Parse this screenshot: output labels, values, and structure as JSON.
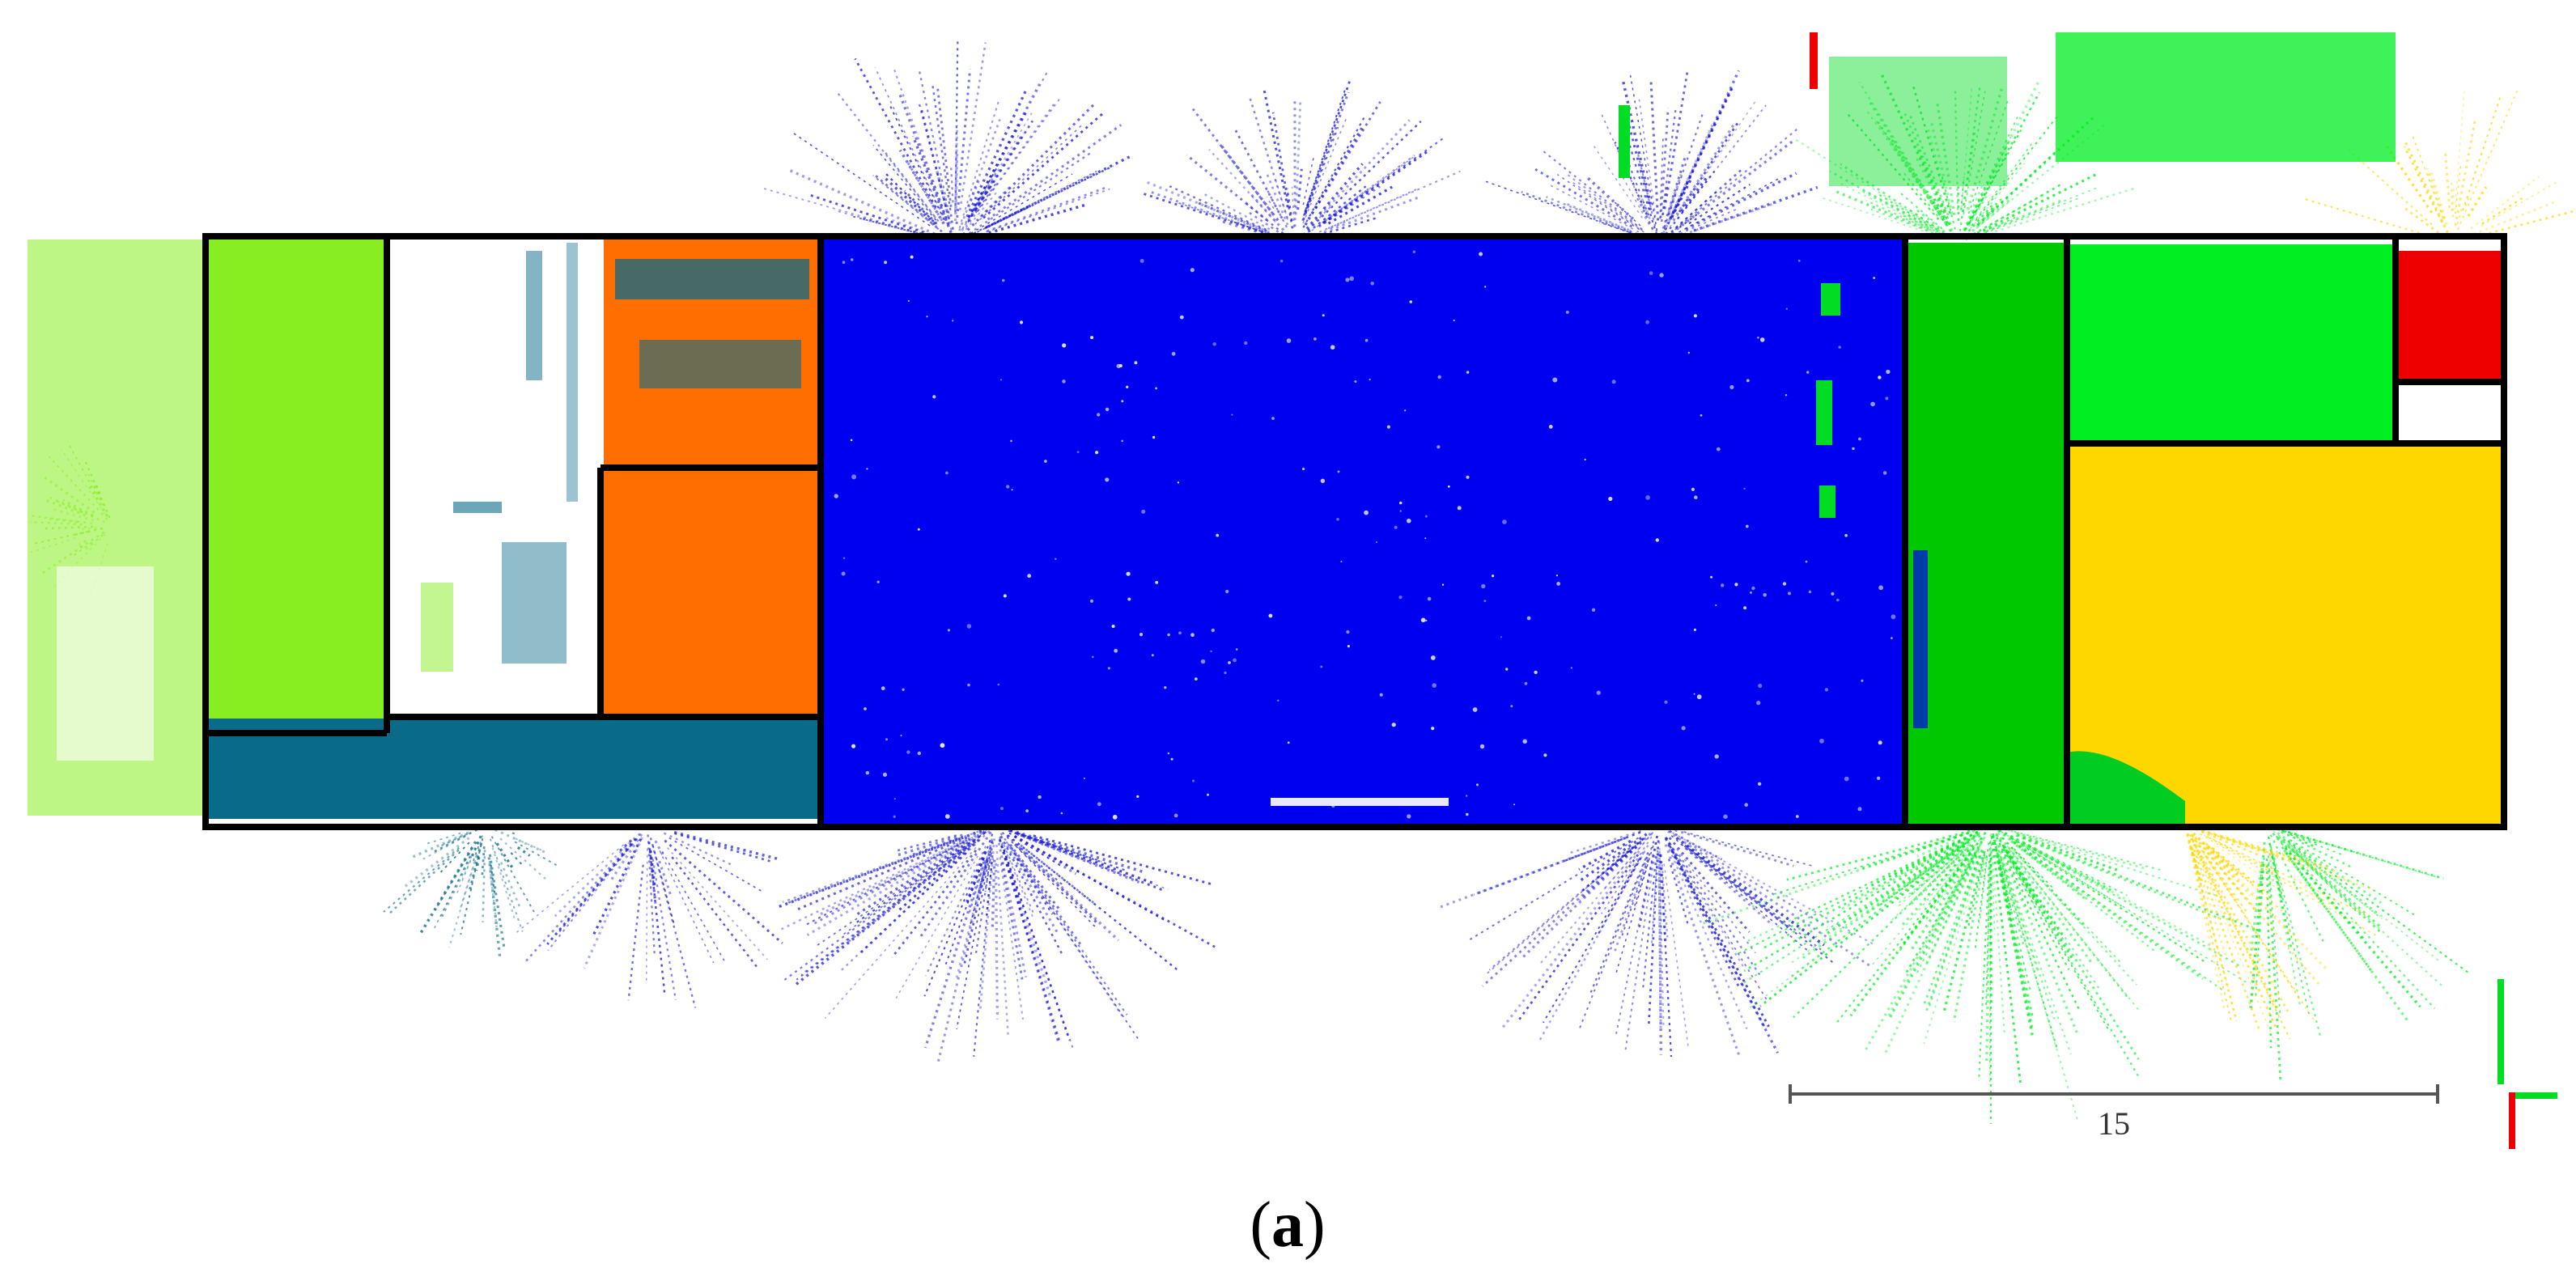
{
  "figure": {
    "scale_bar_label": "15",
    "caption_open": "(",
    "caption_letter": "a",
    "caption_close": ")"
  },
  "palette": {
    "corridor_blue": "#0000f0",
    "scatter_blue": "#1a1ad6",
    "room_green": "#00c800",
    "room_bright_green": "#00ee22",
    "room_lime": "#88ee22",
    "room_orange": "#ff6e00",
    "room_teal": "#0a6a8a",
    "room_yellow": "#ffd700",
    "room_red": "#ee0000",
    "wall": "#000000",
    "scale_bar": "#555555"
  }
}
